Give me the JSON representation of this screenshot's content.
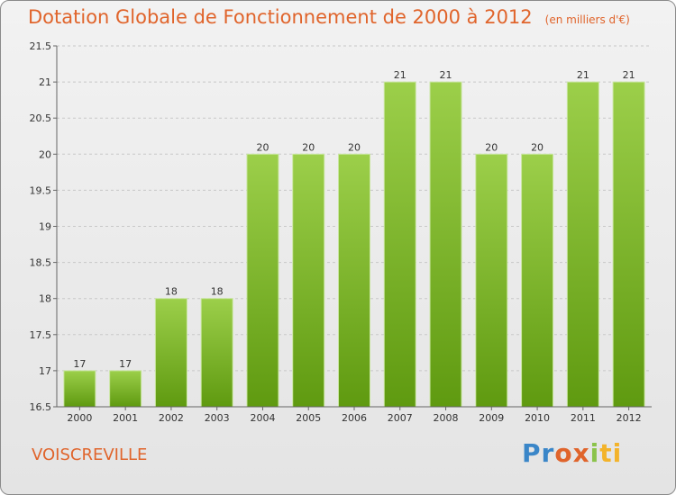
{
  "chart_data": {
    "type": "bar",
    "title": "Dotation Globale de Fonctionnement de 2000 à 2012",
    "subtitle": "(en milliers d'€)",
    "categories": [
      "2000",
      "2001",
      "2002",
      "2003",
      "2004",
      "2005",
      "2006",
      "2007",
      "2008",
      "2009",
      "2010",
      "2011",
      "2012"
    ],
    "values": [
      17,
      17,
      18,
      18,
      20,
      20,
      20,
      21,
      21,
      20,
      20,
      21,
      21
    ],
    "value_labels": [
      "17",
      "17",
      "18",
      "18",
      "20",
      "20",
      "20",
      "21",
      "21",
      "20",
      "20",
      "21",
      "21"
    ],
    "ylim": [
      16.5,
      21.5
    ],
    "yticks": [
      "16.5",
      "17",
      "17.5",
      "18",
      "18.5",
      "19",
      "19.5",
      "20",
      "20.5",
      "21",
      "21.5"
    ],
    "xlabel": "",
    "ylabel": "",
    "grid": true,
    "bar_color_top": "#9ccf4a",
    "bar_color_bottom": "#5f9a10"
  },
  "footer": {
    "commune": "VOISCREVILLE",
    "logo": {
      "p1": "Pr",
      "p2": "o",
      "p3": "x",
      "p4": "i",
      "p5": "ti"
    }
  }
}
